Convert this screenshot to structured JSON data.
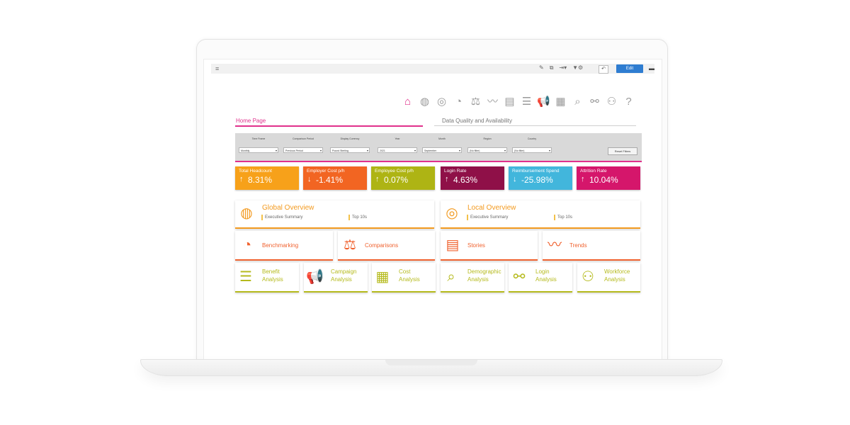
{
  "toolbar": {
    "menu_icon": "hamburger-icon",
    "tools": [
      "✎",
      "⧉",
      "⇥▾",
      "▼⚙"
    ],
    "undo": "↶",
    "edit_label": "Edit",
    "camera": "▬"
  },
  "nav": {
    "icons": [
      {
        "name": "home-icon",
        "glyph": "⌂"
      },
      {
        "name": "globe-icon",
        "glyph": "◍"
      },
      {
        "name": "target-icon",
        "glyph": "◎"
      },
      {
        "name": "pie-icon",
        "glyph": "◔"
      },
      {
        "name": "scales-icon",
        "glyph": "⚖"
      },
      {
        "name": "trend-icon",
        "glyph": "〰"
      },
      {
        "name": "stories-icon",
        "glyph": "▤"
      },
      {
        "name": "checklist-icon",
        "glyph": "☰"
      },
      {
        "name": "megaphone-icon",
        "glyph": "📢"
      },
      {
        "name": "calculator-icon",
        "glyph": "▦"
      },
      {
        "name": "search-icon",
        "glyph": "⌕"
      },
      {
        "name": "handshake-icon",
        "glyph": "⚯"
      },
      {
        "name": "people-icon",
        "glyph": "⚇"
      },
      {
        "name": "help-icon",
        "glyph": "?"
      }
    ]
  },
  "tabs": {
    "home": "Home Page",
    "data_quality": "Data Quality and Availability"
  },
  "filters": [
    {
      "label": "Time Frame",
      "value": "Monthly"
    },
    {
      "label": "Comparison Period",
      "value": "Previous Period"
    },
    {
      "label": "Display Currency",
      "value": "Pound Sterling"
    },
    {
      "label": "Year",
      "value": "2021"
    },
    {
      "label": "Month",
      "value": "September"
    },
    {
      "label": "Region",
      "value": "(No filter)"
    },
    {
      "label": "Country",
      "value": "(No filter)"
    }
  ],
  "reset_label": "Reset Filters",
  "kpis": [
    {
      "title": "Total Headcount",
      "arrow": "↑",
      "value": "8.31%",
      "color": "#f7a11a"
    },
    {
      "title": "Employer Cost p/h",
      "arrow": "↓",
      "value": "-1.41%",
      "color": "#f26522"
    },
    {
      "title": "Employee Cost p/h",
      "arrow": "↑",
      "value": "0.07%",
      "color": "#aeb414"
    },
    {
      "title": "Login Rate",
      "arrow": "↑",
      "value": "4.63%",
      "color": "#8f1048"
    },
    {
      "title": "Reimbursement Spend",
      "arrow": "↓",
      "value": "-25.98%",
      "color": "#42b6dc"
    },
    {
      "title": "Attrition Rate",
      "arrow": "↑",
      "value": "10.04%",
      "color": "#d5166b"
    }
  ],
  "overview": [
    {
      "title": "Global Overview",
      "icon": "◍",
      "sub1": "Executive Summary",
      "sub2": "Top 10s"
    },
    {
      "title": "Local Overview",
      "icon": "◎",
      "sub1": "Executive Summary",
      "sub2": "Top 10s"
    }
  ],
  "tools_row": [
    {
      "label": "Benchmarking",
      "icon": "◔"
    },
    {
      "label": "Comparisons",
      "icon": "⚖"
    },
    {
      "label": "Stories",
      "icon": "▤"
    },
    {
      "label": "Trends",
      "icon": "〰"
    }
  ],
  "analysis": [
    {
      "line1": "Benefit",
      "line2": "Analysis",
      "icon": "☰"
    },
    {
      "line1": "Campaign",
      "line2": "Analysis",
      "icon": "📢"
    },
    {
      "line1": "Cost",
      "line2": "Analysis",
      "icon": "▦"
    },
    {
      "line1": "Demographic",
      "line2": "Analysis",
      "icon": "⌕"
    },
    {
      "line1": "Login",
      "line2": "Analysis",
      "icon": "⚯"
    },
    {
      "line1": "Workforce",
      "line2": "Analysis",
      "icon": "⚇"
    }
  ]
}
